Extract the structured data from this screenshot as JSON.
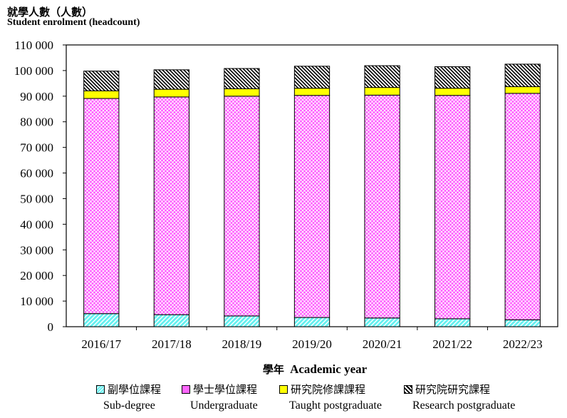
{
  "chart_data": {
    "type": "bar",
    "stacked": true,
    "title": "",
    "ylabel_zh": "就學人數（人數）",
    "ylabel_en": "Student enrolment (headcount)",
    "xlabel_zh": "學年",
    "xlabel_en": "Academic year",
    "ylim": [
      0,
      110000
    ],
    "yticks": [
      0,
      10000,
      20000,
      30000,
      40000,
      50000,
      60000,
      70000,
      80000,
      90000,
      100000,
      110000
    ],
    "ytick_labels": [
      "0",
      "10 000",
      "20 000",
      "30 000",
      "40 000",
      "50 000",
      "60 000",
      "70 000",
      "80 000",
      "90 000",
      "100 000",
      "110 000"
    ],
    "categories": [
      "2016/17",
      "2017/18",
      "2018/19",
      "2019/20",
      "2020/21",
      "2021/22",
      "2022/23"
    ],
    "series": [
      {
        "name_zh": "副學位課程",
        "name": "Sub-degree",
        "color": "#66f0f0",
        "pattern": "diag",
        "values": [
          5100,
          4700,
          4200,
          3600,
          3400,
          3100,
          2700
        ]
      },
      {
        "name_zh": "學士學位課程",
        "name": "Undergraduate",
        "color": "#ff66ff",
        "pattern": "cross",
        "values": [
          84000,
          85000,
          85800,
          86700,
          87000,
          87200,
          88400
        ]
      },
      {
        "name_zh": "研究院修課課程",
        "name": "Taught postgraduate",
        "color": "#ffff00",
        "pattern": "solid",
        "values": [
          3000,
          3000,
          2900,
          2800,
          3000,
          2800,
          2600
        ]
      },
      {
        "name_zh": "研究院研究課程",
        "name": "Research postgraduate",
        "color": "#000000",
        "pattern": "hatch",
        "values": [
          7700,
          7600,
          7900,
          8600,
          8500,
          8400,
          8800
        ]
      }
    ],
    "grid": false,
    "legend_position": "bottom"
  }
}
